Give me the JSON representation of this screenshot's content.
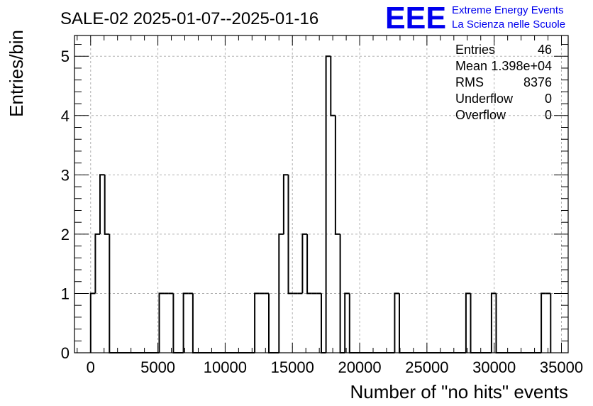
{
  "title": "SALE-02 2025-01-07--2025-01-16",
  "logo": {
    "letters": "EEE",
    "line1": "Extreme Energy Events",
    "line2": "La Scienza nelle Scuole",
    "color": "#0000ee"
  },
  "stats": [
    {
      "label": "Entries",
      "value": "46"
    },
    {
      "label": "Mean",
      "value": "1.398e+04"
    },
    {
      "label": "RMS",
      "value": "8376"
    },
    {
      "label": "Underflow",
      "value": "0"
    },
    {
      "label": "Overflow",
      "value": "0"
    }
  ],
  "chart_data": {
    "type": "bar",
    "style": "step-histogram",
    "xlabel": "Number of \"no hits\" events",
    "ylabel": "Entries/bin",
    "xlim": [
      -1200,
      35500
    ],
    "ylim": [
      0,
      5.35
    ],
    "x_ticks": [
      0,
      5000,
      10000,
      15000,
      20000,
      25000,
      30000,
      35000
    ],
    "y_ticks": [
      0,
      1,
      2,
      3,
      4,
      5
    ],
    "grid": true,
    "bin_edges": [
      0,
      350,
      700,
      1050,
      1400,
      5100,
      5450,
      5800,
      6150,
      6900,
      7250,
      7600,
      12200,
      12550,
      12900,
      13250,
      14000,
      14350,
      14700,
      15050,
      15400,
      15750,
      16100,
      16450,
      16800,
      17150,
      17500,
      17850,
      18200,
      18550,
      18900,
      19250,
      19600,
      22600,
      22950,
      27900,
      28250,
      29800,
      30150,
      33500,
      33850,
      34200
    ],
    "values": [
      1,
      2,
      3,
      2,
      0,
      1,
      1,
      1,
      0,
      1,
      1,
      0,
      1,
      1,
      1,
      0,
      2,
      3,
      1,
      1,
      1,
      2,
      1,
      1,
      1,
      0,
      5,
      4,
      2,
      0,
      1,
      0,
      0,
      1,
      0,
      1,
      0,
      1,
      0,
      1,
      1
    ]
  }
}
